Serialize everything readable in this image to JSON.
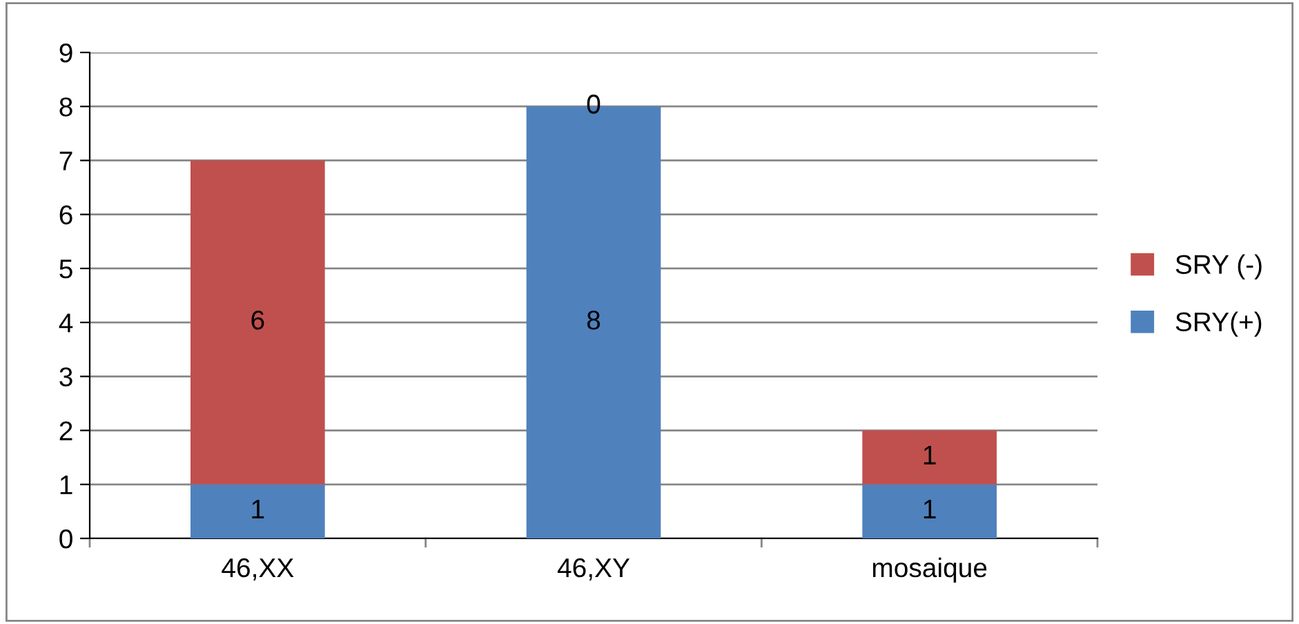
{
  "chart_data": {
    "type": "bar",
    "stacked": true,
    "categories": [
      "46,XX",
      "46,XY",
      "mosaique"
    ],
    "series": [
      {
        "name": "SRY(+)",
        "color": "#4f81bd",
        "values": [
          1,
          8,
          1
        ]
      },
      {
        "name": "SRY (-)",
        "color": "#c0504d",
        "values": [
          6,
          0,
          1
        ]
      }
    ],
    "ylim": [
      0,
      9
    ],
    "yticks": [
      0,
      1,
      2,
      3,
      4,
      5,
      6,
      7,
      8,
      9
    ],
    "grid": "y",
    "legend": "right",
    "data_labels": true
  }
}
